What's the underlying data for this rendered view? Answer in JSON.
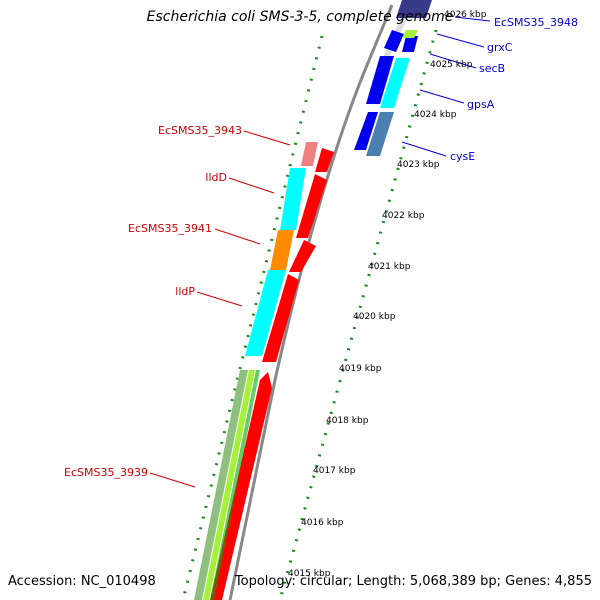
{
  "title": "Escherichia coli SMS-3-5, complete genome",
  "accession_text": "Accession: NC_010498",
  "topology_text": "Topology: circular; Length: 5,068,389 bp; Genes: 4,855",
  "ticks": [
    "4026 kbp",
    "4025 kbp",
    "4024 kbp",
    "4023 kbp",
    "4022 kbp",
    "4021 kbp",
    "4020 kbp",
    "4019 kbp",
    "4018 kbp",
    "4017 kbp",
    "4016 kbp",
    "4015 kbp"
  ],
  "left_labels": [
    "EcSMS35_3943",
    "lldD",
    "EcSMS35_3941",
    "lldP",
    "EcSMS35_3939"
  ],
  "right_labels": [
    "EcSMS35_3948",
    "grxC",
    "secB",
    "gpsA",
    "cysE"
  ],
  "colors": {
    "left_label": "#cc0000",
    "right_label": "#0000cc",
    "tick_dots": "#1a8a1a",
    "backbone": "#888888",
    "red": "#ff0000",
    "cyan": "#00ffff",
    "orange": "#ff8c00",
    "pink": "#f08080",
    "blue": "#0000ee",
    "steel": "#4a7fb0",
    "lime": "#a6f03c",
    "sage": "#8fbf7f",
    "navy": "#3a3a8a"
  }
}
